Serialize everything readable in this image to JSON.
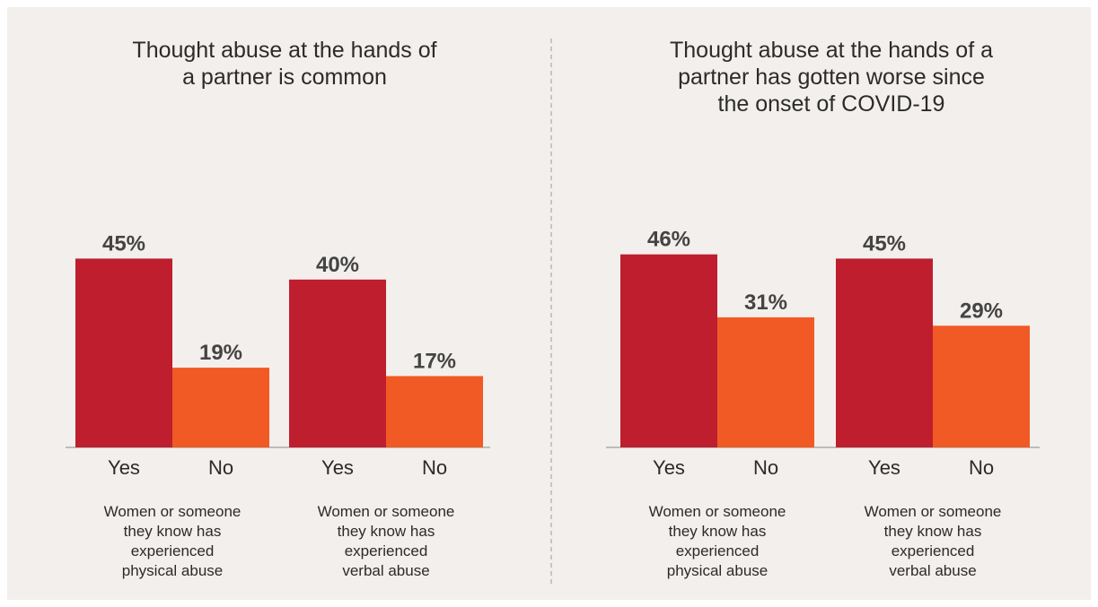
{
  "chart_data": [
    {
      "type": "bar",
      "title": [
        "Thought abuse at the hands of",
        "a partner is common"
      ],
      "groups": [
        {
          "label": [
            "Women or someone",
            "they know has",
            "experienced",
            "physical abuse"
          ],
          "bars": [
            {
              "category": "Yes",
              "value": 45,
              "label": "45%",
              "color": "#be1e2d"
            },
            {
              "category": "No",
              "value": 19,
              "label": "19%",
              "color": "#f15a24"
            }
          ]
        },
        {
          "label": [
            "Women or someone",
            "they know has",
            "experienced",
            "verbal abuse"
          ],
          "bars": [
            {
              "category": "Yes",
              "value": 40,
              "label": "40%",
              "color": "#be1e2d"
            },
            {
              "category": "No",
              "value": 17,
              "label": "17%",
              "color": "#f15a24"
            }
          ]
        }
      ],
      "ylim": [
        0,
        45
      ]
    },
    {
      "type": "bar",
      "title": [
        "Thought abuse at the hands of a",
        "partner has gotten worse since",
        "the onset of COVID-19"
      ],
      "groups": [
        {
          "label": [
            "Women or someone",
            "they know has",
            "experienced",
            "physical abuse"
          ],
          "bars": [
            {
              "category": "Yes",
              "value": 46,
              "label": "46%",
              "color": "#be1e2d"
            },
            {
              "category": "No",
              "value": 31,
              "label": "31%",
              "color": "#f15a24"
            }
          ]
        },
        {
          "label": [
            "Women or someone",
            "they know has",
            "experienced",
            "verbal abuse"
          ],
          "bars": [
            {
              "category": "Yes",
              "value": 45,
              "label": "45%",
              "color": "#be1e2d"
            },
            {
              "category": "No",
              "value": 29,
              "label": "29%",
              "color": "#f15a24"
            }
          ]
        }
      ],
      "ylim": [
        0,
        45
      ]
    }
  ],
  "colors": {
    "panel_background": "#f2efec",
    "yes_bar": "#be1e2d",
    "no_bar": "#f15a24",
    "divider": "#aaaaaa"
  }
}
